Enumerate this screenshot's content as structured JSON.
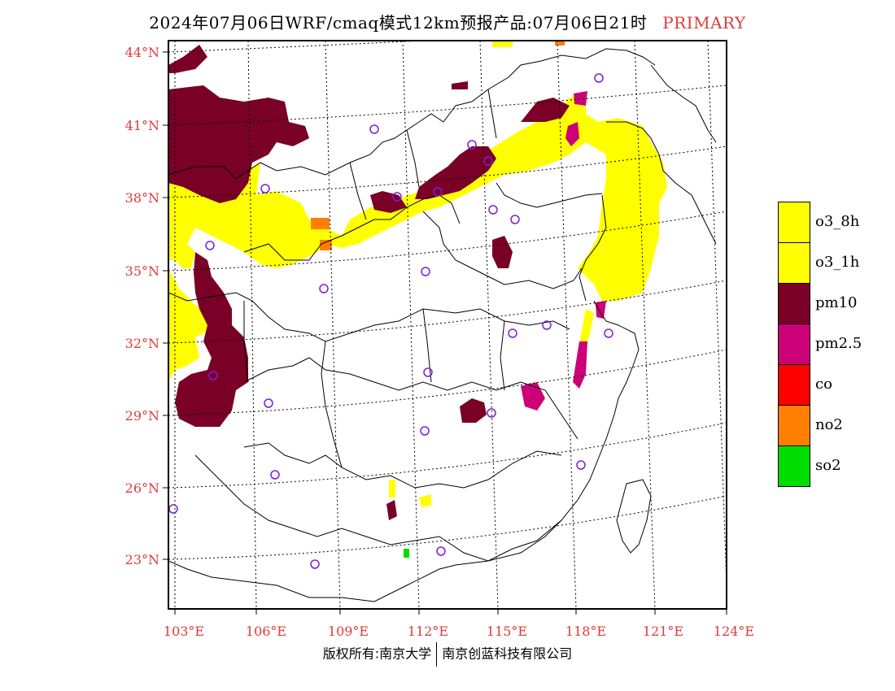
{
  "title": {
    "main": "2024年07月06日WRF/cmaq模式12km预报产品:07月06日21时",
    "tag": "PRIMARY"
  },
  "axes": {
    "lat_labels": [
      "44°N",
      "41°N",
      "38°N",
      "35°N",
      "32°N",
      "29°N",
      "26°N",
      "23°N"
    ],
    "lon_labels": [
      "103°E",
      "106°E",
      "109°E",
      "112°E",
      "115°E",
      "118°E",
      "121°E",
      "124°E"
    ]
  },
  "legend": [
    {
      "label": "o3_8h",
      "color": "#ffff00"
    },
    {
      "label": "o3_1h",
      "color": "#ffff00"
    },
    {
      "label": "pm10",
      "color": "#7a0028"
    },
    {
      "label": "pm2.5",
      "color": "#cc0077"
    },
    {
      "label": "co",
      "color": "#ff0000"
    },
    {
      "label": "no2",
      "color": "#ff7f00"
    },
    {
      "label": "so2",
      "color": "#00dd00"
    }
  ],
  "footer": {
    "left": "版权所有:南京大学",
    "right": "南京创蓝科技有限公司"
  }
}
